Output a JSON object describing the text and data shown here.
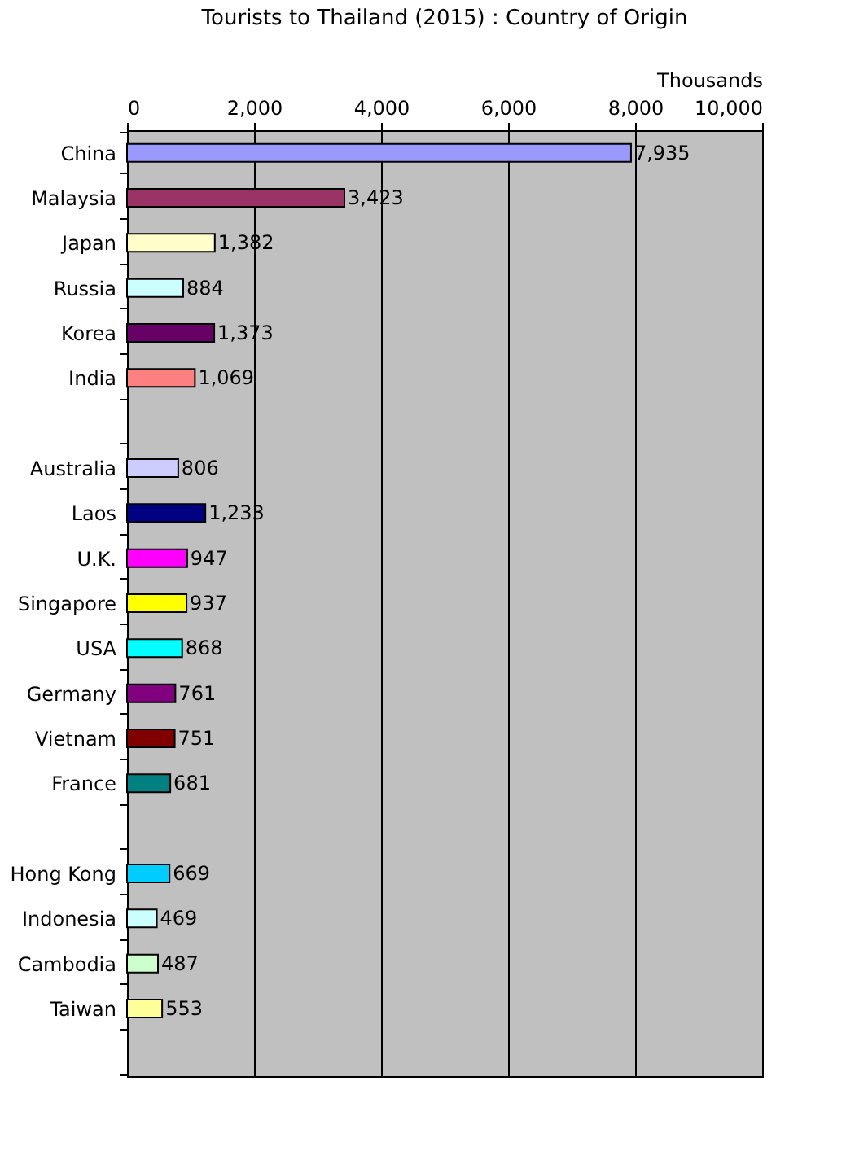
{
  "chart_data": {
    "type": "bar",
    "orientation": "horizontal",
    "title": "Tourists to Thailand (2015) : Country of Origin",
    "xlabel": "Thousands",
    "categories": [
      "China",
      "Malaysia",
      "Japan",
      "Russia",
      "Korea",
      "India",
      null,
      "Australia",
      "Laos",
      "U.K.",
      "Singapore",
      "USA",
      "Germany",
      "Vietnam",
      "France",
      null,
      "Hong Kong",
      "Indonesia",
      "Cambodia",
      "Taiwan",
      null
    ],
    "values": [
      7935,
      3423,
      1382,
      884,
      1373,
      1069,
      null,
      806,
      1233,
      947,
      937,
      868,
      761,
      751,
      681,
      null,
      669,
      469,
      487,
      553,
      null
    ],
    "colors": [
      "#9999ff",
      "#993366",
      "#ffffcc",
      "#ccffff",
      "#660066",
      "#ff8080",
      null,
      "#ccccff",
      "#000080",
      "#ff00ff",
      "#ffff00",
      "#00ffff",
      "#800080",
      "#800000",
      "#008080",
      null,
      "#00ccff",
      "#ccffff",
      "#ccffcc",
      "#ffff99",
      null
    ],
    "value_labels": [
      "7,935",
      "3,423",
      "1,382",
      "884",
      "1,373",
      "1,069",
      null,
      "806",
      "1,233",
      "947",
      "937",
      "868",
      "761",
      "751",
      "681",
      null,
      "669",
      "469",
      "487",
      "553",
      null
    ],
    "xlim": [
      0,
      10000
    ],
    "xticks": [
      0,
      {
        "value": 2000,
        "label": "2,000"
      },
      {
        "value": 4000,
        "label": "4,000"
      },
      {
        "value": 6000,
        "label": "6,000"
      },
      {
        "value": 8000,
        "label": "8,000"
      },
      {
        "value": 10000,
        "label": "10,000"
      }
    ],
    "grid": "x"
  }
}
